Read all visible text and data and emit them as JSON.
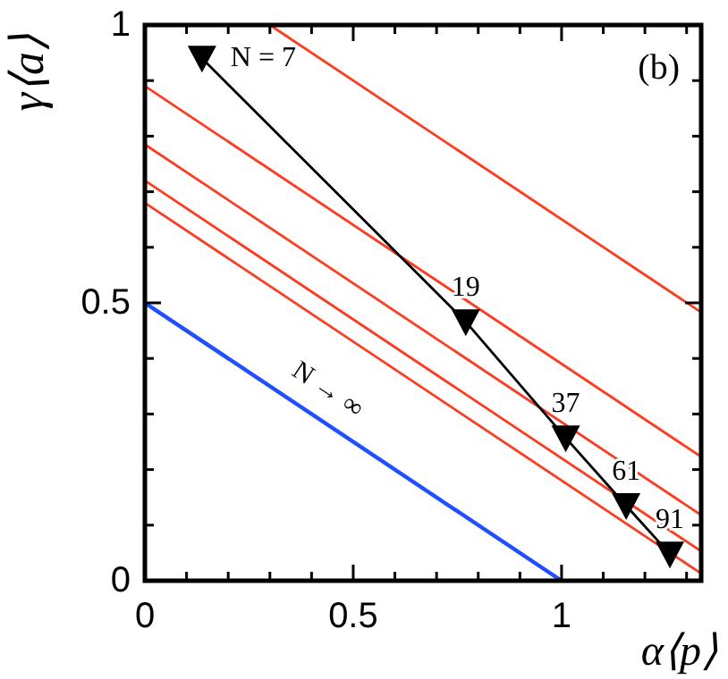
{
  "chart_data": {
    "type": "line",
    "xlabel": "α⟨p⟩",
    "ylabel": "γ⟨a⟩",
    "xlim": [
      0,
      1.335
    ],
    "ylim": [
      0,
      1
    ],
    "xticks": [
      0,
      {
        "value": 0.1,
        "label": null
      },
      {
        "value": 0.2,
        "label": null
      },
      {
        "value": 0.3,
        "label": null
      },
      {
        "value": 0.4,
        "label": null
      },
      0.5,
      {
        "value": 0.6,
        "label": null
      },
      {
        "value": 0.7,
        "label": null
      },
      {
        "value": 0.8,
        "label": null
      },
      {
        "value": 0.9,
        "label": null
      },
      1,
      {
        "value": 1.1,
        "label": null
      },
      {
        "value": 1.2,
        "label": null
      },
      {
        "value": 1.3,
        "label": null
      }
    ],
    "yticks": [
      0,
      {
        "value": 0.1,
        "label": null
      },
      {
        "value": 0.2,
        "label": null
      },
      {
        "value": 0.3,
        "label": null
      },
      {
        "value": 0.4,
        "label": null
      },
      0.5,
      {
        "value": 0.6,
        "label": null
      },
      {
        "value": 0.7,
        "label": null
      },
      {
        "value": 0.8,
        "label": null
      },
      {
        "value": 0.9,
        "label": null
      },
      1
    ],
    "series": [
      {
        "color": "#ff3b1f",
        "x": [
          0.3,
          1.335
        ],
        "values": [
          1,
          0.483
        ],
        "marker": "none"
      },
      {
        "color": "#ff3b1f",
        "x": [
          0,
          1.335
        ],
        "values": [
          0.89,
          0.223
        ],
        "marker": "none"
      },
      {
        "color": "#ff3b1f",
        "x": [
          0,
          1.335
        ],
        "values": [
          0.785,
          0.118
        ],
        "marker": "none"
      },
      {
        "color": "#ff3b1f",
        "x": [
          0,
          1.335
        ],
        "values": [
          0.72,
          0.053
        ],
        "marker": "none"
      },
      {
        "color": "#ff3b1f",
        "x": [
          0,
          1.335
        ],
        "values": [
          0.68,
          0.013
        ],
        "marker": "none"
      },
      {
        "color": "#000000",
        "x": [
          0.137,
          0.77,
          1.01,
          1.155,
          1.26
        ],
        "values": [
          0.94,
          0.466,
          0.257,
          0.135,
          0.048
        ],
        "marker": "triangle"
      },
      {
        "color": "#1f4fff",
        "x": [
          0,
          1
        ],
        "values": [
          0.5,
          0
        ],
        "marker": "none"
      }
    ],
    "annotations": [
      "(b)",
      {
        "text": "N = 7",
        "x": 0.137,
        "y": 0.94
      },
      {
        "text": "19",
        "x": 0.77,
        "y": 0.466
      },
      {
        "text": "37",
        "x": 1.01,
        "y": 0.257
      },
      {
        "text": "61",
        "x": 1.155,
        "y": 0.135
      },
      {
        "text": "91",
        "x": 1.26,
        "y": 0.048
      },
      {
        "text": "N → ∞",
        "x": 0.4,
        "y": 0.3
      }
    ]
  }
}
